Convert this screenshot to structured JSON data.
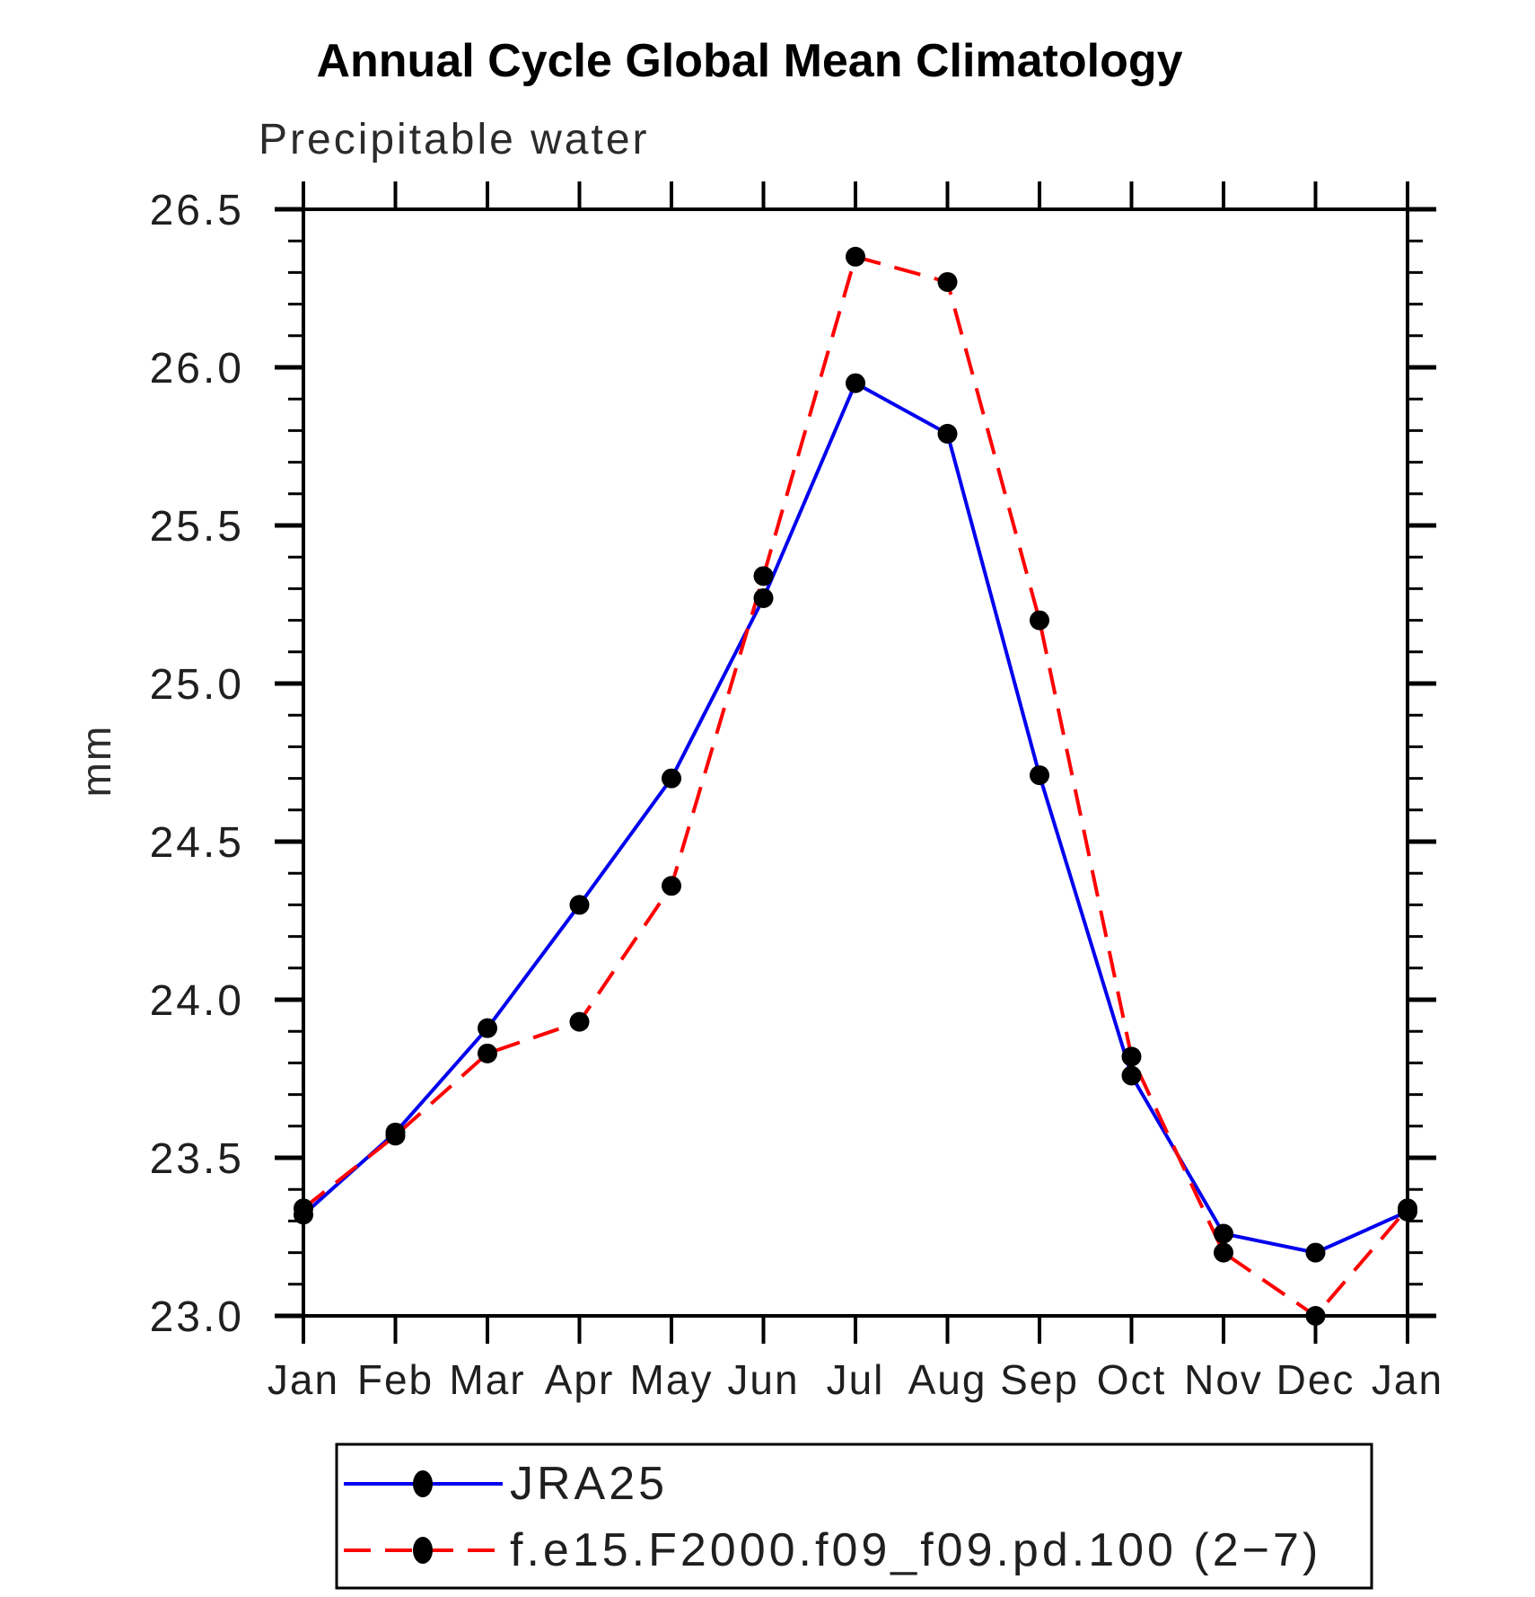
{
  "title": "Annual Cycle Global Mean Climatology",
  "subtitle": "Precipitable water",
  "ylabel": "mm",
  "chart_data": {
    "type": "line",
    "x_categories": [
      "Jan",
      "Feb",
      "Mar",
      "Apr",
      "May",
      "Jun",
      "Jul",
      "Aug",
      "Sep",
      "Oct",
      "Nov",
      "Dec",
      "Jan"
    ],
    "ylim": [
      23.0,
      26.5
    ],
    "ytick_major": 0.5,
    "ytick_minor": 0.1,
    "y_tick_labels": [
      "23.0",
      "23.5",
      "24.0",
      "24.5",
      "25.0",
      "25.5",
      "26.0",
      "26.5"
    ],
    "grid": false,
    "legend_position": "bottom-left",
    "axis_color": "#000000",
    "marker_color": "#000000",
    "series": [
      {
        "name": "JRA25",
        "color": "#0000ee",
        "line_style": "solid",
        "marker": "filled-circle",
        "values": [
          23.32,
          23.58,
          23.91,
          24.3,
          24.7,
          25.27,
          25.95,
          25.79,
          24.71,
          23.76,
          23.26,
          23.2,
          23.33
        ]
      },
      {
        "name": "f.e15.F2000.f09_f09.pd.100 (2−7)",
        "color": "#ff0000",
        "line_style": "dashed",
        "marker": "filled-circle",
        "values": [
          23.34,
          23.57,
          23.83,
          23.93,
          24.36,
          25.34,
          26.35,
          26.27,
          25.2,
          23.82,
          23.2,
          23.0,
          23.34
        ]
      }
    ]
  }
}
